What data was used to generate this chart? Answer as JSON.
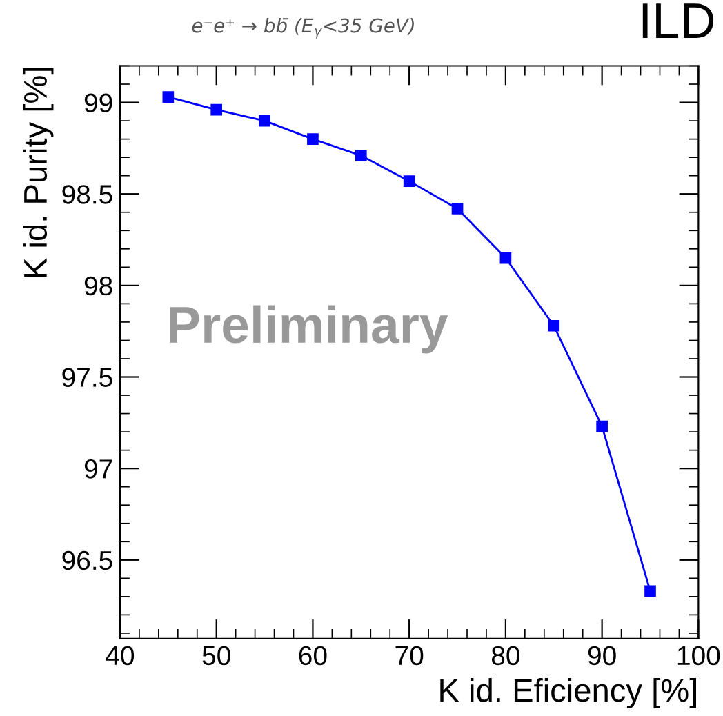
{
  "chart_data": {
    "type": "line",
    "title": "e⁻e⁺ → bb̄ (E$_{γ}$<35 GeV)",
    "xlabel": "K id. Eficiency [%]",
    "ylabel": "K id. Purity [%]",
    "annotations": [
      "ILD",
      "Preliminary"
    ],
    "x": [
      45,
      50,
      55,
      60,
      65,
      70,
      75,
      80,
      85,
      90,
      95
    ],
    "series": [
      {
        "color": "#0000ff",
        "values": [
          99.03,
          98.96,
          98.9,
          98.8,
          98.71,
          98.57,
          98.42,
          98.15,
          97.78,
          97.23,
          96.33
        ]
      }
    ],
    "xlim": [
      40,
      100
    ],
    "ylim": [
      96.07,
      99.2
    ],
    "xticks": [
      40,
      50,
      60,
      70,
      80,
      90,
      100
    ],
    "yticks": [
      {
        "value": 96.5,
        "label": "96.5"
      },
      {
        "value": 97,
        "label": "97"
      },
      {
        "value": 97.5,
        "label": "97.5"
      },
      {
        "value": 98,
        "label": "98"
      },
      {
        "value": 98.5,
        "label": "98.5"
      },
      {
        "value": 99,
        "label": "99"
      }
    ],
    "marker": "square",
    "line_style": "solid",
    "grid": false
  }
}
